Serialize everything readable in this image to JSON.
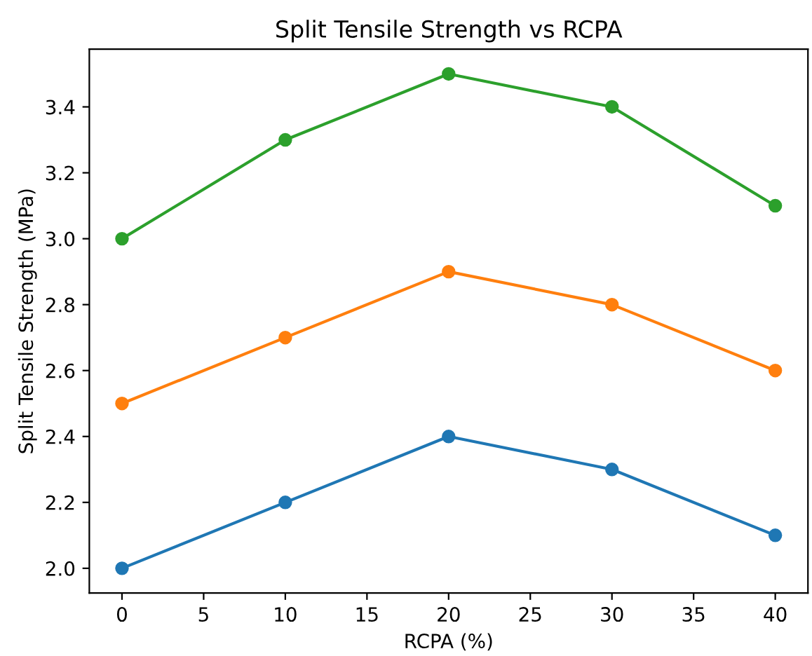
{
  "chart_data": {
    "type": "line",
    "title": "Split Tensile Strength vs RCPA",
    "xlabel": "RCPA (%)",
    "ylabel": "Split Tensile Strength (MPa)",
    "x": [
      0,
      10,
      20,
      30,
      40
    ],
    "series": [
      {
        "color": "#1f77b4",
        "values": [
          2.0,
          2.2,
          2.4,
          2.3,
          2.1
        ]
      },
      {
        "color": "#ff7f0e",
        "values": [
          2.5,
          2.7,
          2.9,
          2.8,
          2.6
        ]
      },
      {
        "color": "#2ca02c",
        "values": [
          3.0,
          3.3,
          3.5,
          3.4,
          3.1
        ]
      }
    ],
    "xlim": [
      -2,
      42
    ],
    "xticks": [
      0,
      5,
      10,
      15,
      20,
      25,
      30,
      35,
      40
    ],
    "ylim": [
      1.925,
      3.575
    ],
    "yticks": [
      {
        "value": 2.0,
        "label": "2.0"
      },
      {
        "value": 2.2,
        "label": "2.2"
      },
      {
        "value": 2.4,
        "label": "2.4"
      },
      {
        "value": 2.6,
        "label": "2.6"
      },
      {
        "value": 2.8,
        "label": "2.8"
      },
      {
        "value": 3.0,
        "label": "3.0"
      },
      {
        "value": 3.2,
        "label": "3.2"
      },
      {
        "value": 3.4,
        "label": "3.4"
      }
    ],
    "marker": "circle",
    "line_style": "solid",
    "grid": false,
    "legend": false
  }
}
